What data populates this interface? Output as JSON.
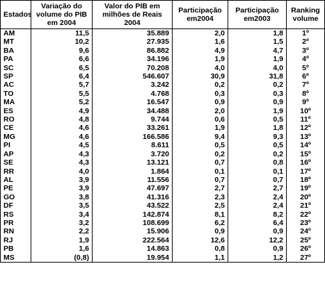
{
  "table": {
    "header": [
      "Estados",
      "Variação do volume do PIB em 2004",
      "Valor do PIB em milhões de Reais 2004",
      "Participação em2004",
      "Participação em2003",
      "Ranking volume"
    ],
    "rows": [
      [
        "AM",
        "11,5",
        "35.889",
        "2,0",
        "1,8",
        "1º"
      ],
      [
        "MT",
        "10,2",
        "27.935",
        "1,6",
        "1,5",
        "2º"
      ],
      [
        "BA",
        "9,6",
        "86.882",
        "4,9",
        "4,7",
        "3º"
      ],
      [
        "PA",
        "6,6",
        "34.196",
        "1,9",
        "1,9",
        "4º"
      ],
      [
        "SC",
        "6,5",
        "70.208",
        "4,0",
        "4,0",
        "5º"
      ],
      [
        "SP",
        "6,4",
        "546.607",
        "30,9",
        "31,8",
        "6º"
      ],
      [
        "AC",
        "5,7",
        "3.242",
        "0,2",
        "0,2",
        "7º"
      ],
      [
        "TO",
        "5,5",
        "4.768",
        "0,3",
        "0,3",
        "8º"
      ],
      [
        "MA",
        "5,2",
        "16.547",
        "0,9",
        "0,9",
        "9º"
      ],
      [
        "ES",
        "4,9",
        "34.488",
        "2,0",
        "1,9",
        "10º"
      ],
      [
        "RO",
        "4,8",
        "9.744",
        "0,6",
        "0,5",
        "11º"
      ],
      [
        "CE",
        "4,6",
        "33.261",
        "1,9",
        "1,8",
        "12º"
      ],
      [
        "MG",
        "4,6",
        "166.586",
        "9,4",
        "9,3",
        "13º"
      ],
      [
        "PI",
        "4,5",
        "8.611",
        "0,5",
        "0,5",
        "14º"
      ],
      [
        "AP",
        "4,3",
        "3.720",
        "0,2",
        "0,2",
        "15º"
      ],
      [
        "SE",
        "4,3",
        "13.121",
        "0,7",
        "0,8",
        "16º"
      ],
      [
        "RR",
        "4,0",
        "1.864",
        "0,1",
        "0,1",
        "17º"
      ],
      [
        "AL",
        "3,9",
        "11.556",
        "0,7",
        "0,7",
        "18º"
      ],
      [
        "PE",
        "3,9",
        "47.697",
        "2,7",
        "2,7",
        "19º"
      ],
      [
        "GO",
        "3,8",
        "41.316",
        "2,3",
        "2,4",
        "20º"
      ],
      [
        "DF",
        "3,5",
        "43.522",
        "2,5",
        "2,4",
        "21º"
      ],
      [
        "RS",
        "3,4",
        "142.874",
        "8,1",
        "8,2",
        "22º"
      ],
      [
        "PR",
        "3,2",
        "108.699",
        "6,2",
        "6,4",
        "23º"
      ],
      [
        "RN",
        "2,2",
        "15.906",
        "0,9",
        "0,9",
        "24º"
      ],
      [
        "RJ",
        "1,9",
        "222.564",
        "12,6",
        "12,2",
        "25º"
      ],
      [
        "PB",
        "1,6",
        "14.863",
        "0,8",
        "0,9",
        "26º"
      ],
      [
        "MS",
        "(0,8)",
        "19.954",
        "1,1",
        "1,2",
        "27º"
      ]
    ]
  }
}
